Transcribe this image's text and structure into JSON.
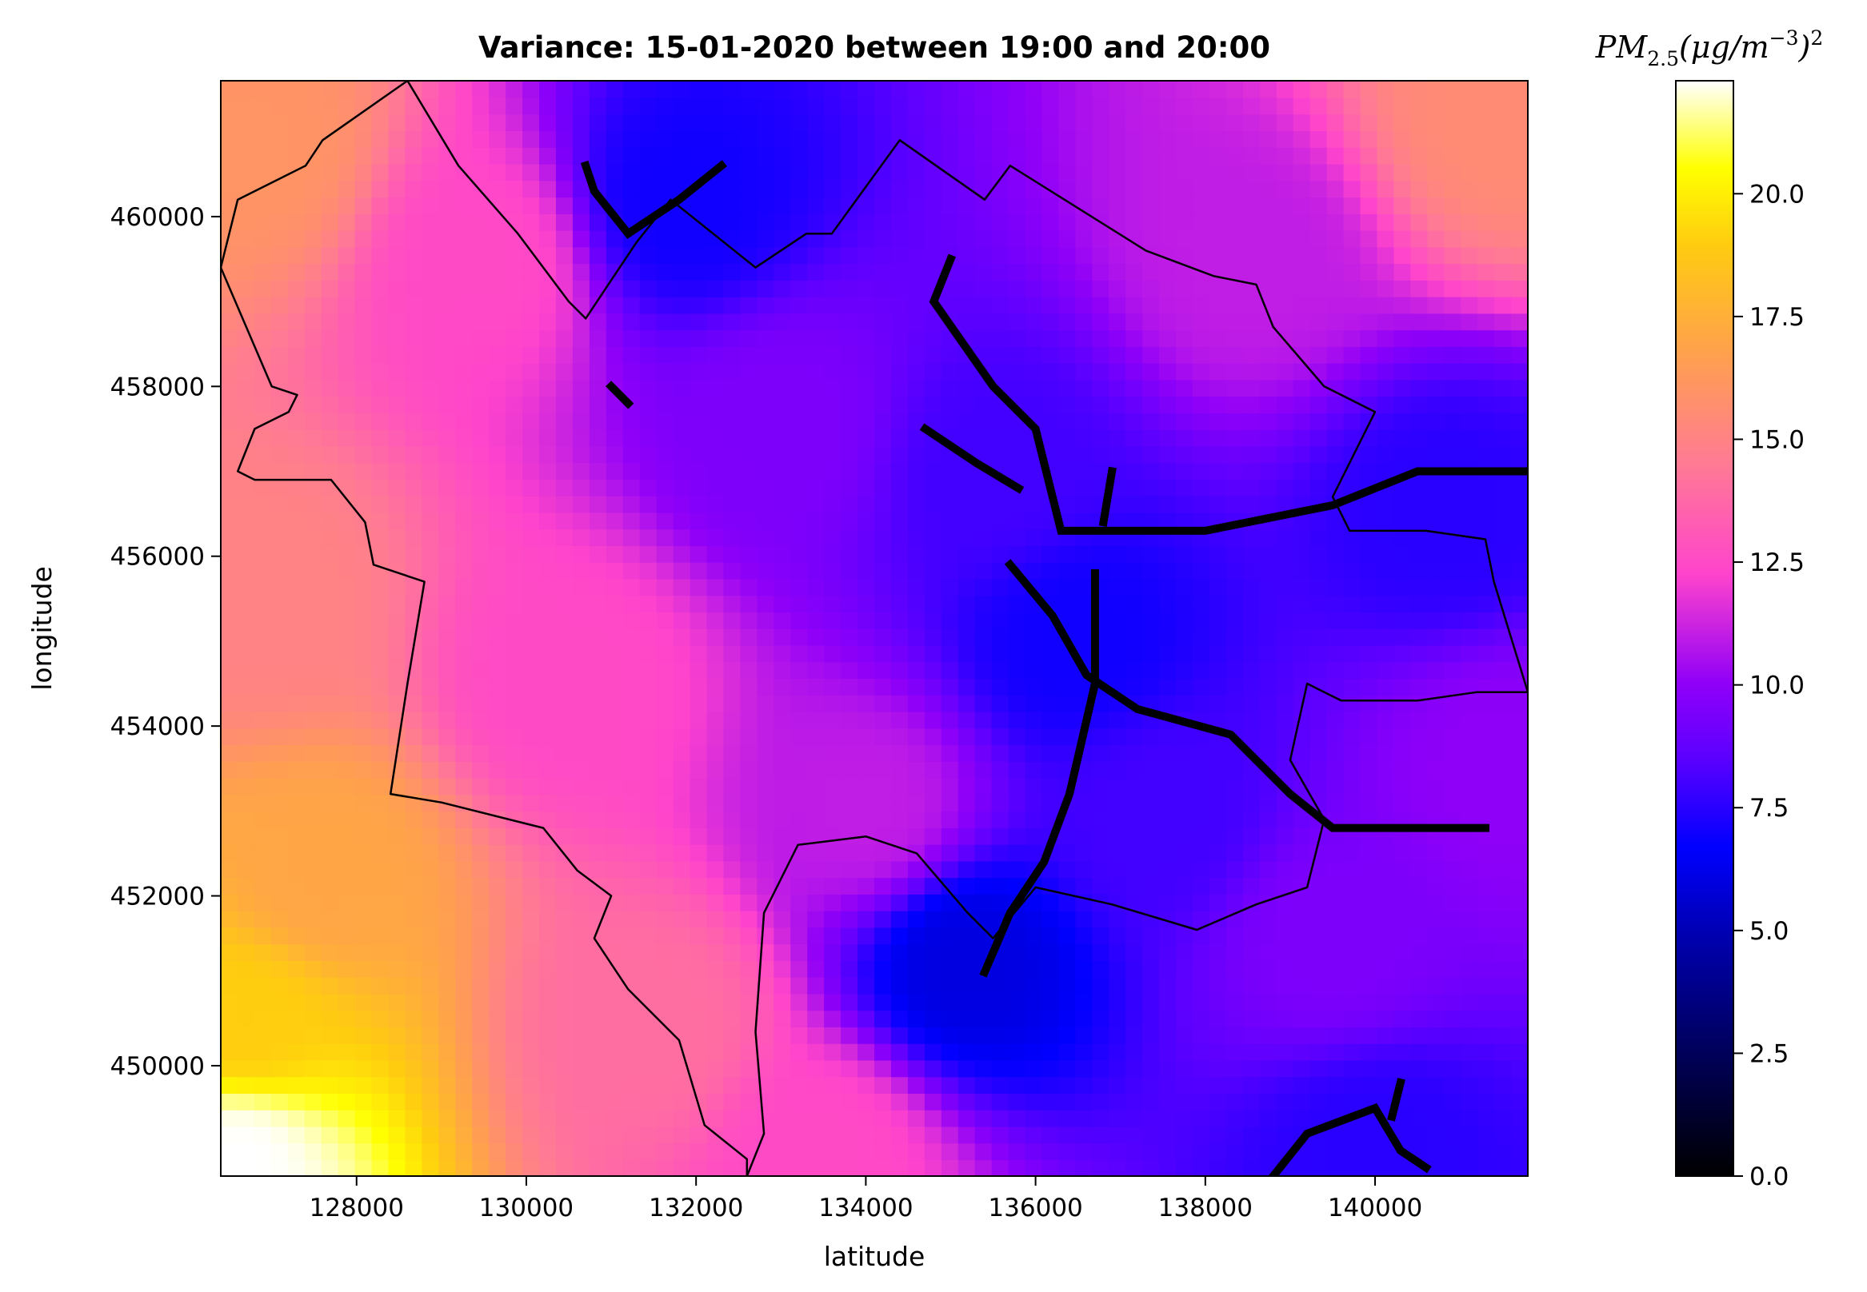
{
  "chart_data": {
    "type": "heatmap",
    "title": "Variance: 15-01-2020 between 19:00 and 20:00",
    "xlabel": "latitude",
    "ylabel": "longitude",
    "xlim": [
      126400,
      141800
    ],
    "ylim": [
      448700,
      461600
    ],
    "x_ticks": [
      "128000",
      "130000",
      "132000",
      "134000",
      "136000",
      "138000",
      "140000"
    ],
    "x_tick_values": [
      128000,
      130000,
      132000,
      134000,
      136000,
      138000,
      140000
    ],
    "y_ticks": [
      "450000",
      "452000",
      "454000",
      "456000",
      "458000",
      "460000"
    ],
    "y_tick_values": [
      450000,
      452000,
      454000,
      456000,
      458000,
      460000
    ],
    "colorbar": {
      "label": "PM2.5(μg/m−3)2",
      "label_main": "PM",
      "label_sub": "2.5",
      "label_rest": "(μg/m",
      "label_sup": "−3",
      "label_close": ")",
      "label_sup2": "2",
      "colormap": "gnuplot2",
      "range": [
        0,
        22.3
      ],
      "ticks": [
        "0.0",
        "2.5",
        "5.0",
        "7.5",
        "10.0",
        "12.5",
        "15.0",
        "17.5",
        "20.0"
      ],
      "tick_values": [
        0,
        2.5,
        5,
        7.5,
        10,
        12.5,
        15,
        17.5,
        20
      ]
    },
    "variance_field": {
      "description_points": [
        {
          "x": 126600,
          "y": 448900,
          "value": 22.3
        },
        {
          "x": 126700,
          "y": 450500,
          "value": 19.0
        },
        {
          "x": 127600,
          "y": 452200,
          "value": 17.0
        },
        {
          "x": 126800,
          "y": 455500,
          "value": 15.0
        },
        {
          "x": 126800,
          "y": 460800,
          "value": 16.0
        },
        {
          "x": 129500,
          "y": 459500,
          "value": 12.5
        },
        {
          "x": 130500,
          "y": 454500,
          "value": 12.5
        },
        {
          "x": 131500,
          "y": 450500,
          "value": 14.0
        },
        {
          "x": 133500,
          "y": 449000,
          "value": 12.5
        },
        {
          "x": 134000,
          "y": 453000,
          "value": 11.0
        },
        {
          "x": 133000,
          "y": 457500,
          "value": 9.5
        },
        {
          "x": 135500,
          "y": 457000,
          "value": 8.0
        },
        {
          "x": 136500,
          "y": 455000,
          "value": 7.0
        },
        {
          "x": 137500,
          "y": 453000,
          "value": 8.0
        },
        {
          "x": 139500,
          "y": 451500,
          "value": 9.5
        },
        {
          "x": 140000,
          "y": 449000,
          "value": 7.5
        },
        {
          "x": 141500,
          "y": 461200,
          "value": 15.5
        },
        {
          "x": 138500,
          "y": 459500,
          "value": 11.0
        },
        {
          "x": 140800,
          "y": 456500,
          "value": 7.5
        },
        {
          "x": 141500,
          "y": 453500,
          "value": 10.0
        },
        {
          "x": 131800,
          "y": 460200,
          "value": 7.0
        },
        {
          "x": 135200,
          "y": 451200,
          "value": 6.0
        }
      ]
    },
    "roads": [
      [
        [
          130700,
          460600
        ],
        [
          130800,
          460300
        ],
        [
          131200,
          459800
        ],
        [
          131800,
          460200
        ],
        [
          132300,
          460600
        ]
      ],
      [
        [
          131000,
          458000
        ],
        [
          131200,
          457800
        ]
      ],
      [
        [
          135000,
          459500
        ],
        [
          134800,
          459000
        ],
        [
          135500,
          458000
        ],
        [
          136000,
          457500
        ],
        [
          136200,
          456700
        ],
        [
          136300,
          456300
        ],
        [
          138000,
          456300
        ],
        [
          139500,
          456600
        ],
        [
          140500,
          457000
        ],
        [
          141800,
          457000
        ]
      ],
      [
        [
          134700,
          457500
        ],
        [
          135300,
          457100
        ],
        [
          135800,
          456800
        ]
      ],
      [
        [
          136800,
          456400
        ],
        [
          136900,
          457000
        ]
      ],
      [
        [
          135700,
          455900
        ],
        [
          136200,
          455300
        ],
        [
          136600,
          454600
        ],
        [
          137200,
          454200
        ],
        [
          138300,
          453900
        ],
        [
          139000,
          453200
        ],
        [
          139500,
          452800
        ],
        [
          141300,
          452800
        ]
      ],
      [
        [
          136700,
          455800
        ],
        [
          136700,
          454500
        ],
        [
          136400,
          453200
        ],
        [
          136100,
          452400
        ],
        [
          135700,
          451800
        ],
        [
          135400,
          451100
        ]
      ],
      [
        [
          138800,
          448700
        ],
        [
          139200,
          449200
        ],
        [
          140000,
          449500
        ],
        [
          140300,
          449000
        ],
        [
          140600,
          448800
        ]
      ],
      [
        [
          140300,
          449800
        ],
        [
          140200,
          449400
        ]
      ]
    ],
    "boundaries": [
      [
        [
          126400,
          459400
        ],
        [
          126600,
          460200
        ],
        [
          127400,
          460600
        ],
        [
          127600,
          460900
        ],
        [
          128600,
          461600
        ],
        [
          129200,
          460600
        ],
        [
          129900,
          459800
        ],
        [
          130500,
          459000
        ],
        [
          130700,
          458800
        ],
        [
          131300,
          459700
        ],
        [
          131700,
          460200
        ],
        [
          132700,
          459400
        ],
        [
          133300,
          459800
        ],
        [
          133600,
          459800
        ],
        [
          134400,
          460900
        ],
        [
          135400,
          460200
        ],
        [
          135700,
          460600
        ],
        [
          137300,
          459600
        ],
        [
          138100,
          459300
        ],
        [
          138600,
          459200
        ],
        [
          138800,
          458700
        ],
        [
          139400,
          458000
        ],
        [
          140000,
          457700
        ],
        [
          139500,
          456700
        ],
        [
          139700,
          456300
        ],
        [
          140600,
          456300
        ],
        [
          141300,
          456200
        ],
        [
          141400,
          455700
        ],
        [
          141800,
          454400
        ]
      ],
      [
        [
          126400,
          459400
        ],
        [
          127000,
          458000
        ],
        [
          127300,
          457900
        ],
        [
          127200,
          457700
        ],
        [
          126800,
          457500
        ],
        [
          126600,
          457000
        ],
        [
          126800,
          456900
        ],
        [
          127700,
          456900
        ],
        [
          128100,
          456400
        ],
        [
          128200,
          455900
        ],
        [
          128800,
          455700
        ],
        [
          128600,
          454500
        ],
        [
          128400,
          453200
        ],
        [
          129000,
          453100
        ],
        [
          130200,
          452800
        ],
        [
          130600,
          452300
        ],
        [
          131000,
          452000
        ],
        [
          130800,
          451500
        ],
        [
          131200,
          450900
        ],
        [
          131800,
          450300
        ],
        [
          132100,
          449300
        ],
        [
          132600,
          448900
        ],
        [
          132600,
          448700
        ]
      ],
      [
        [
          132600,
          448700
        ],
        [
          132800,
          449200
        ],
        [
          132700,
          450400
        ],
        [
          132800,
          451800
        ],
        [
          133200,
          452600
        ],
        [
          134000,
          452700
        ],
        [
          134600,
          452500
        ],
        [
          135200,
          451800
        ],
        [
          135500,
          451500
        ],
        [
          136000,
          452100
        ],
        [
          136900,
          451900
        ],
        [
          137900,
          451600
        ],
        [
          138600,
          451900
        ],
        [
          139200,
          452100
        ],
        [
          139400,
          452900
        ],
        [
          139000,
          453600
        ],
        [
          139200,
          454500
        ],
        [
          139600,
          454300
        ],
        [
          140500,
          454300
        ],
        [
          141200,
          454400
        ],
        [
          141800,
          454400
        ]
      ]
    ]
  }
}
